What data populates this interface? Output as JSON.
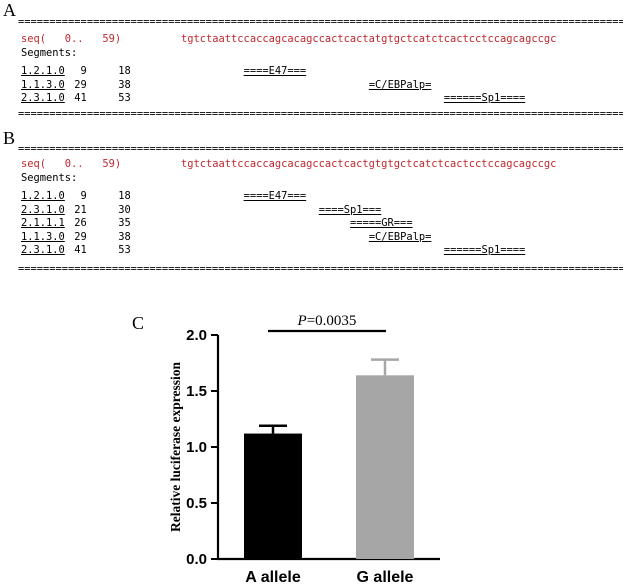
{
  "panel_a": {
    "letter": "A",
    "rule": "====================================================================================================",
    "seq_label": "seq(   0..   59)",
    "sequence": "tgtctaattccaccagcacagccactcactatgtgctcatctcactcctccagcagccgc",
    "segments_label": "Segments:",
    "rows": [
      {
        "id": "1.2.1.0",
        "start": "9",
        "end": "18",
        "site": "====E47==="
      },
      {
        "id": "1.1.3.0",
        "start": "29",
        "end": "38",
        "site": "=C/EBPalp="
      },
      {
        "id": "2.3.1.0",
        "start": "41",
        "end": "53",
        "site": "======Sp1===="
      }
    ]
  },
  "panel_b": {
    "letter": "B",
    "rule": "====================================================================================================",
    "seq_label": "seq(   0..   59)",
    "sequence": "tgtctaattccaccagcacagccactcactgtgtgctcatctcactcctccagcagccgc",
    "segments_label": "Segments:",
    "rows": [
      {
        "id": "1.2.1.0",
        "start": "9",
        "end": "18",
        "site": "====E47==="
      },
      {
        "id": "2.3.1.0",
        "start": "21",
        "end": "30",
        "site": "====Sp1==="
      },
      {
        "id": "2.1.1.1",
        "start": "26",
        "end": "35",
        "site": "=====GR==="
      },
      {
        "id": "1.1.3.0",
        "start": "29",
        "end": "38",
        "site": "=C/EBPalp="
      },
      {
        "id": "2.3.1.0",
        "start": "41",
        "end": "53",
        "site": "======Sp1===="
      }
    ]
  },
  "panel_c": {
    "letter": "C",
    "p_label": "P",
    "p_value": "=0.0035"
  },
  "chart_data": {
    "type": "bar",
    "categories": [
      "A allele",
      "G allele"
    ],
    "values": [
      1.12,
      1.64
    ],
    "errors": [
      0.07,
      0.14
    ],
    "colors": [
      "#000000",
      "#a6a6a6"
    ],
    "xlabel": "",
    "ylabel": "Relative luciferase expression",
    "ylim": [
      0,
      2.0
    ],
    "yticks": [
      "0.0",
      "0.5",
      "1.0",
      "1.5",
      "2.0"
    ],
    "annotation": "P=0.0035",
    "grid": false
  }
}
